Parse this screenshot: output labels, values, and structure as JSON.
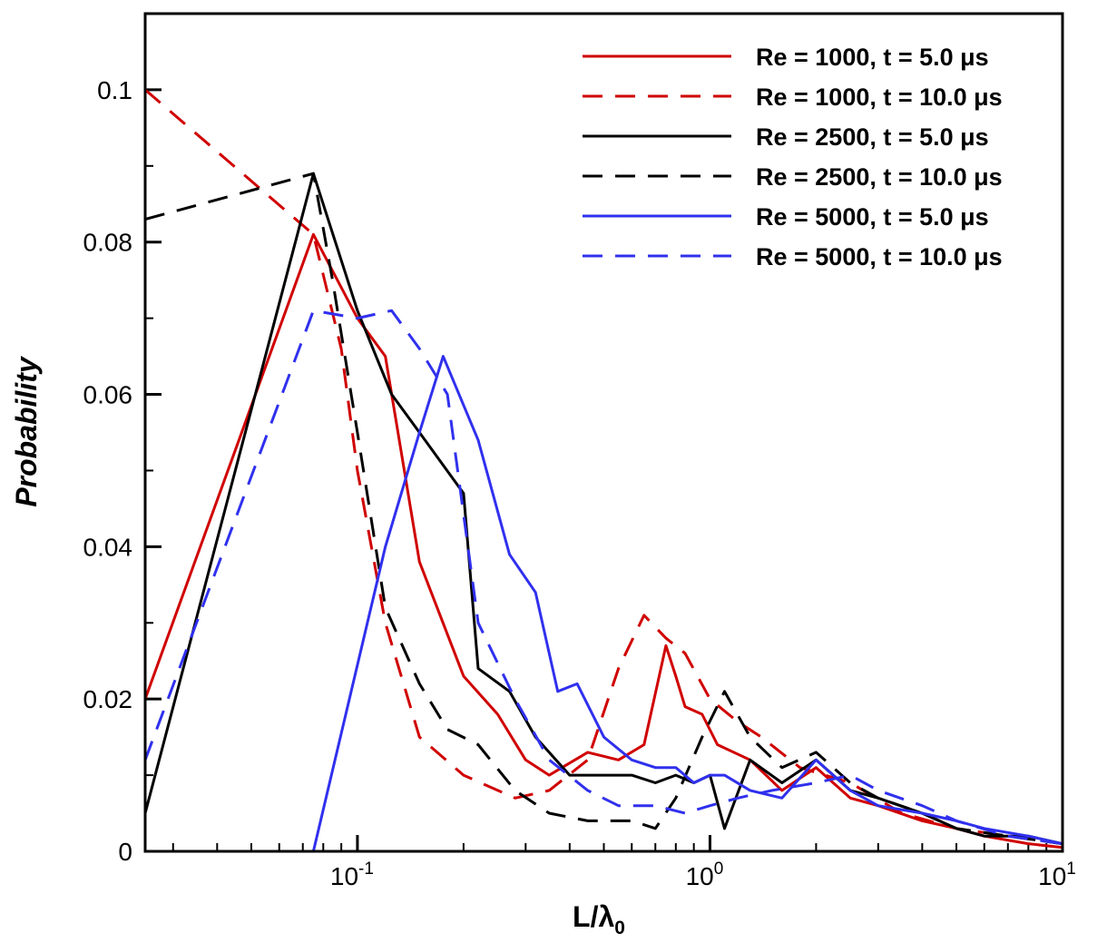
{
  "chart_data": {
    "type": "line",
    "title": "",
    "xlabel": "L/λ",
    "xlabel_sub": "0",
    "ylabel": "Probability",
    "xscale": "log",
    "xlim": [
      0.025,
      10
    ],
    "ylim": [
      0,
      0.11
    ],
    "grid": false,
    "legend_position": "top-right",
    "y_ticks": [
      0,
      0.02,
      0.04,
      0.06,
      0.08,
      0.1
    ],
    "y_tick_labels": [
      "0",
      "0.02",
      "0.04",
      "0.06",
      "0.08",
      "0.1"
    ],
    "x_major_ticks": [
      {
        "value": 0.1,
        "base": "10",
        "exp": "-1"
      },
      {
        "value": 1,
        "base": "10",
        "exp": "0"
      },
      {
        "value": 10,
        "base": "10",
        "exp": "1"
      }
    ],
    "series": [
      {
        "name": "Re = 1000, t =  5.0 μs",
        "color": "#d00000",
        "dash": "solid",
        "x": [
          0.025,
          0.075,
          0.1,
          0.12,
          0.15,
          0.2,
          0.25,
          0.3,
          0.35,
          0.45,
          0.55,
          0.65,
          0.75,
          0.8,
          0.85,
          0.95,
          1.05,
          1.3,
          1.6,
          2,
          2.5,
          3,
          4,
          5,
          6,
          8,
          10
        ],
        "y": [
          0.02,
          0.081,
          0.07,
          0.065,
          0.038,
          0.023,
          0.018,
          0.012,
          0.01,
          0.013,
          0.012,
          0.014,
          0.027,
          0.023,
          0.019,
          0.018,
          0.014,
          0.012,
          0.008,
          0.011,
          0.007,
          0.006,
          0.004,
          0.003,
          0.002,
          0.001,
          0.0005
        ]
      },
      {
        "name": "Re = 1000, t = 10.0 μs",
        "color": "#d00000",
        "dash": "dashed",
        "x": [
          0.025,
          0.075,
          0.09,
          0.1,
          0.12,
          0.15,
          0.2,
          0.28,
          0.35,
          0.45,
          0.55,
          0.65,
          0.75,
          0.85,
          1,
          1.2,
          1.4,
          1.8,
          2.5,
          3.5,
          5,
          7,
          10
        ],
        "y": [
          0.1,
          0.081,
          0.066,
          0.05,
          0.03,
          0.015,
          0.01,
          0.007,
          0.008,
          0.012,
          0.024,
          0.031,
          0.028,
          0.026,
          0.02,
          0.017,
          0.015,
          0.011,
          0.009,
          0.005,
          0.003,
          0.002,
          0.001
        ]
      },
      {
        "name": "Re = 2500, t =  5.0 μs",
        "color": "#000000",
        "dash": "solid",
        "x": [
          0.025,
          0.075,
          0.1,
          0.125,
          0.15,
          0.2,
          0.22,
          0.27,
          0.32,
          0.4,
          0.5,
          0.6,
          0.7,
          0.8,
          0.9,
          1,
          1.1,
          1.3,
          1.6,
          2,
          2.5,
          3,
          4,
          5,
          6,
          8,
          10
        ],
        "y": [
          0.005,
          0.089,
          0.071,
          0.06,
          0.055,
          0.047,
          0.024,
          0.021,
          0.015,
          0.01,
          0.01,
          0.01,
          0.009,
          0.01,
          0.009,
          0.01,
          0.003,
          0.012,
          0.009,
          0.012,
          0.008,
          0.007,
          0.005,
          0.003,
          0.002,
          0.002,
          0.001
        ]
      },
      {
        "name": "Re = 2500, t = 10.0 μs",
        "color": "#000000",
        "dash": "dashed",
        "x": [
          0.025,
          0.075,
          0.085,
          0.1,
          0.12,
          0.15,
          0.18,
          0.22,
          0.28,
          0.35,
          0.45,
          0.6,
          0.7,
          0.8,
          0.95,
          1.1,
          1.3,
          1.6,
          2,
          2.5,
          3,
          4,
          5,
          7,
          10
        ],
        "y": [
          0.083,
          0.089,
          0.075,
          0.055,
          0.032,
          0.022,
          0.016,
          0.014,
          0.008,
          0.005,
          0.004,
          0.004,
          0.003,
          0.007,
          0.015,
          0.021,
          0.015,
          0.011,
          0.013,
          0.009,
          0.007,
          0.005,
          0.003,
          0.002,
          0.001
        ]
      },
      {
        "name": "Re = 5000, t =  5.0 μs",
        "color": "#3030ee",
        "dash": "solid",
        "x": [
          0.075,
          0.12,
          0.15,
          0.175,
          0.22,
          0.27,
          0.32,
          0.37,
          0.42,
          0.5,
          0.6,
          0.7,
          0.8,
          0.9,
          1,
          1.1,
          1.3,
          1.6,
          2,
          2.5,
          3,
          4,
          5,
          6,
          8,
          10
        ],
        "y": [
          0,
          0.04,
          0.055,
          0.065,
          0.054,
          0.039,
          0.034,
          0.021,
          0.022,
          0.015,
          0.012,
          0.011,
          0.011,
          0.009,
          0.01,
          0.01,
          0.008,
          0.007,
          0.012,
          0.008,
          0.006,
          0.005,
          0.004,
          0.003,
          0.002,
          0.001
        ]
      },
      {
        "name": "Re = 5000, t = 10.0 μs",
        "color": "#3030ee",
        "dash": "dashed",
        "x": [
          0.025,
          0.075,
          0.1,
          0.125,
          0.15,
          0.18,
          0.22,
          0.28,
          0.35,
          0.45,
          0.55,
          0.7,
          0.85,
          1,
          1.2,
          1.5,
          2,
          2.5,
          3,
          4,
          5,
          7,
          10
        ],
        "y": [
          0.012,
          0.071,
          0.07,
          0.071,
          0.066,
          0.06,
          0.03,
          0.02,
          0.012,
          0.008,
          0.006,
          0.006,
          0.005,
          0.006,
          0.007,
          0.008,
          0.009,
          0.01,
          0.008,
          0.006,
          0.004,
          0.002,
          0.001
        ]
      }
    ]
  }
}
